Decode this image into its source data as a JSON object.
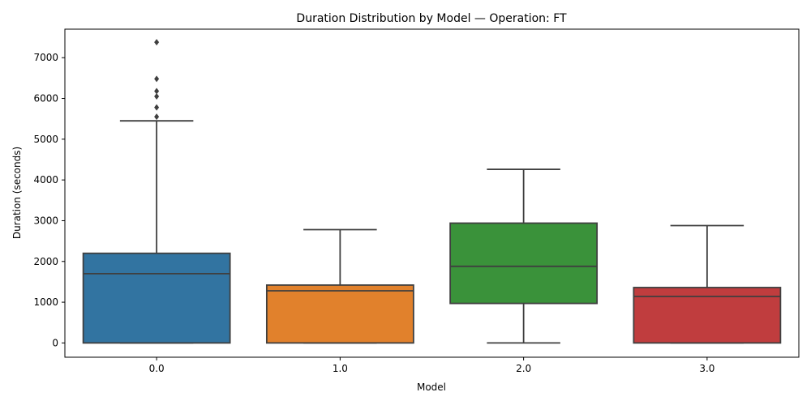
{
  "chart_data": {
    "type": "box",
    "title": "Duration Distribution by Model — Operation: FT",
    "xlabel": "Model",
    "ylabel": "Duration (seconds)",
    "ylim": [
      -350,
      7700
    ],
    "yticks": [
      0,
      1000,
      2000,
      3000,
      4000,
      5000,
      6000,
      7000
    ],
    "grid": false,
    "categories": [
      "0.0",
      "1.0",
      "2.0",
      "3.0"
    ],
    "boxes": [
      {
        "category": "0.0",
        "color": "#3274a1",
        "whisker_low": 0,
        "q1": 0,
        "median": 1700,
        "q3": 2200,
        "whisker_high": 5450,
        "outliers": [
          5550,
          5780,
          6050,
          6180,
          6480,
          7380
        ]
      },
      {
        "category": "1.0",
        "color": "#e1812c",
        "whisker_low": 0,
        "q1": 0,
        "median": 1280,
        "q3": 1420,
        "whisker_high": 2780,
        "outliers": []
      },
      {
        "category": "2.0",
        "color": "#3a923a",
        "whisker_low": 0,
        "q1": 970,
        "median": 1880,
        "q3": 2940,
        "whisker_high": 4260,
        "outliers": []
      },
      {
        "category": "3.0",
        "color": "#c03d3e",
        "whisker_low": 0,
        "q1": 0,
        "median": 1140,
        "q3": 1360,
        "whisker_high": 2880,
        "outliers": []
      }
    ]
  }
}
